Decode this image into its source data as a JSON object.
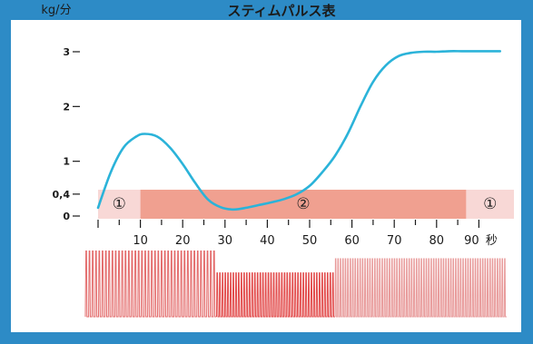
{
  "corner_text": "",
  "chart_data": {
    "type": "line",
    "title": "スティムパルス表",
    "y_unit": "kg/分",
    "x_unit": "秒",
    "ylim": [
      0,
      3
    ],
    "xlim": [
      0,
      100
    ],
    "y_ticks": [
      {
        "value": 0,
        "label": "0"
      },
      {
        "value": 0.4,
        "label": "0,4"
      },
      {
        "value": 1,
        "label": "1"
      },
      {
        "value": 2,
        "label": "2"
      },
      {
        "value": 3,
        "label": "3"
      }
    ],
    "x_ticks": [
      10,
      20,
      30,
      40,
      50,
      60,
      70,
      80,
      90
    ],
    "x_labels": [
      {
        "value": 10,
        "label": "10"
      },
      {
        "value": 20,
        "label": "20"
      },
      {
        "value": 30,
        "label": "30"
      },
      {
        "value": 40,
        "label": "40"
      },
      {
        "value": 50,
        "label": "50"
      },
      {
        "value": 60,
        "label": "60"
      },
      {
        "value": 70,
        "label": "70"
      },
      {
        "value": 80,
        "label": "80"
      },
      {
        "value": 90,
        "label": "90"
      }
    ],
    "series": [
      {
        "color": "#2bb3d9",
        "x": [
          0,
          3,
          6,
          9,
          11,
          14,
          17,
          20,
          23,
          26,
          29,
          32,
          35,
          38,
          41,
          44,
          47,
          50,
          53,
          56,
          59,
          62,
          65,
          68,
          71,
          74,
          77,
          80,
          83,
          86,
          89,
          92,
          95
        ],
        "y": [
          0.15,
          0.8,
          1.25,
          1.45,
          1.5,
          1.45,
          1.25,
          0.95,
          0.6,
          0.3,
          0.16,
          0.12,
          0.15,
          0.2,
          0.25,
          0.31,
          0.4,
          0.55,
          0.8,
          1.1,
          1.5,
          2.0,
          2.45,
          2.75,
          2.92,
          2.98,
          3.0,
          3.0,
          3.01,
          3.01,
          3.01,
          3.01,
          3.01
        ]
      }
    ],
    "phases": [
      {
        "label": "①",
        "x_start": 0,
        "x_end": 10,
        "color": "#f8d8d6"
      },
      {
        "label": "②",
        "x_start": 10,
        "x_end": 87,
        "color": "#f0a090"
      },
      {
        "label": "①",
        "x_start": 87,
        "x_end": 100,
        "color": "#f8d8d6"
      }
    ],
    "pulse_segments": [
      {
        "x_start": -3,
        "x_end": 28,
        "density": 40,
        "amplitude": 0.93,
        "color": "#e36a6a"
      },
      {
        "x_start": 28,
        "x_end": 56,
        "density": 44,
        "amplitude": 0.62,
        "color": "#e24a4a"
      },
      {
        "x_start": 56,
        "x_end": 100,
        "density": 70,
        "amplitude": 0.82,
        "color": "#e89a9a"
      }
    ],
    "colors": {
      "frame": "#2d8bc6",
      "plot_bg": "#ffffff",
      "line": "#2bb3d9"
    }
  }
}
